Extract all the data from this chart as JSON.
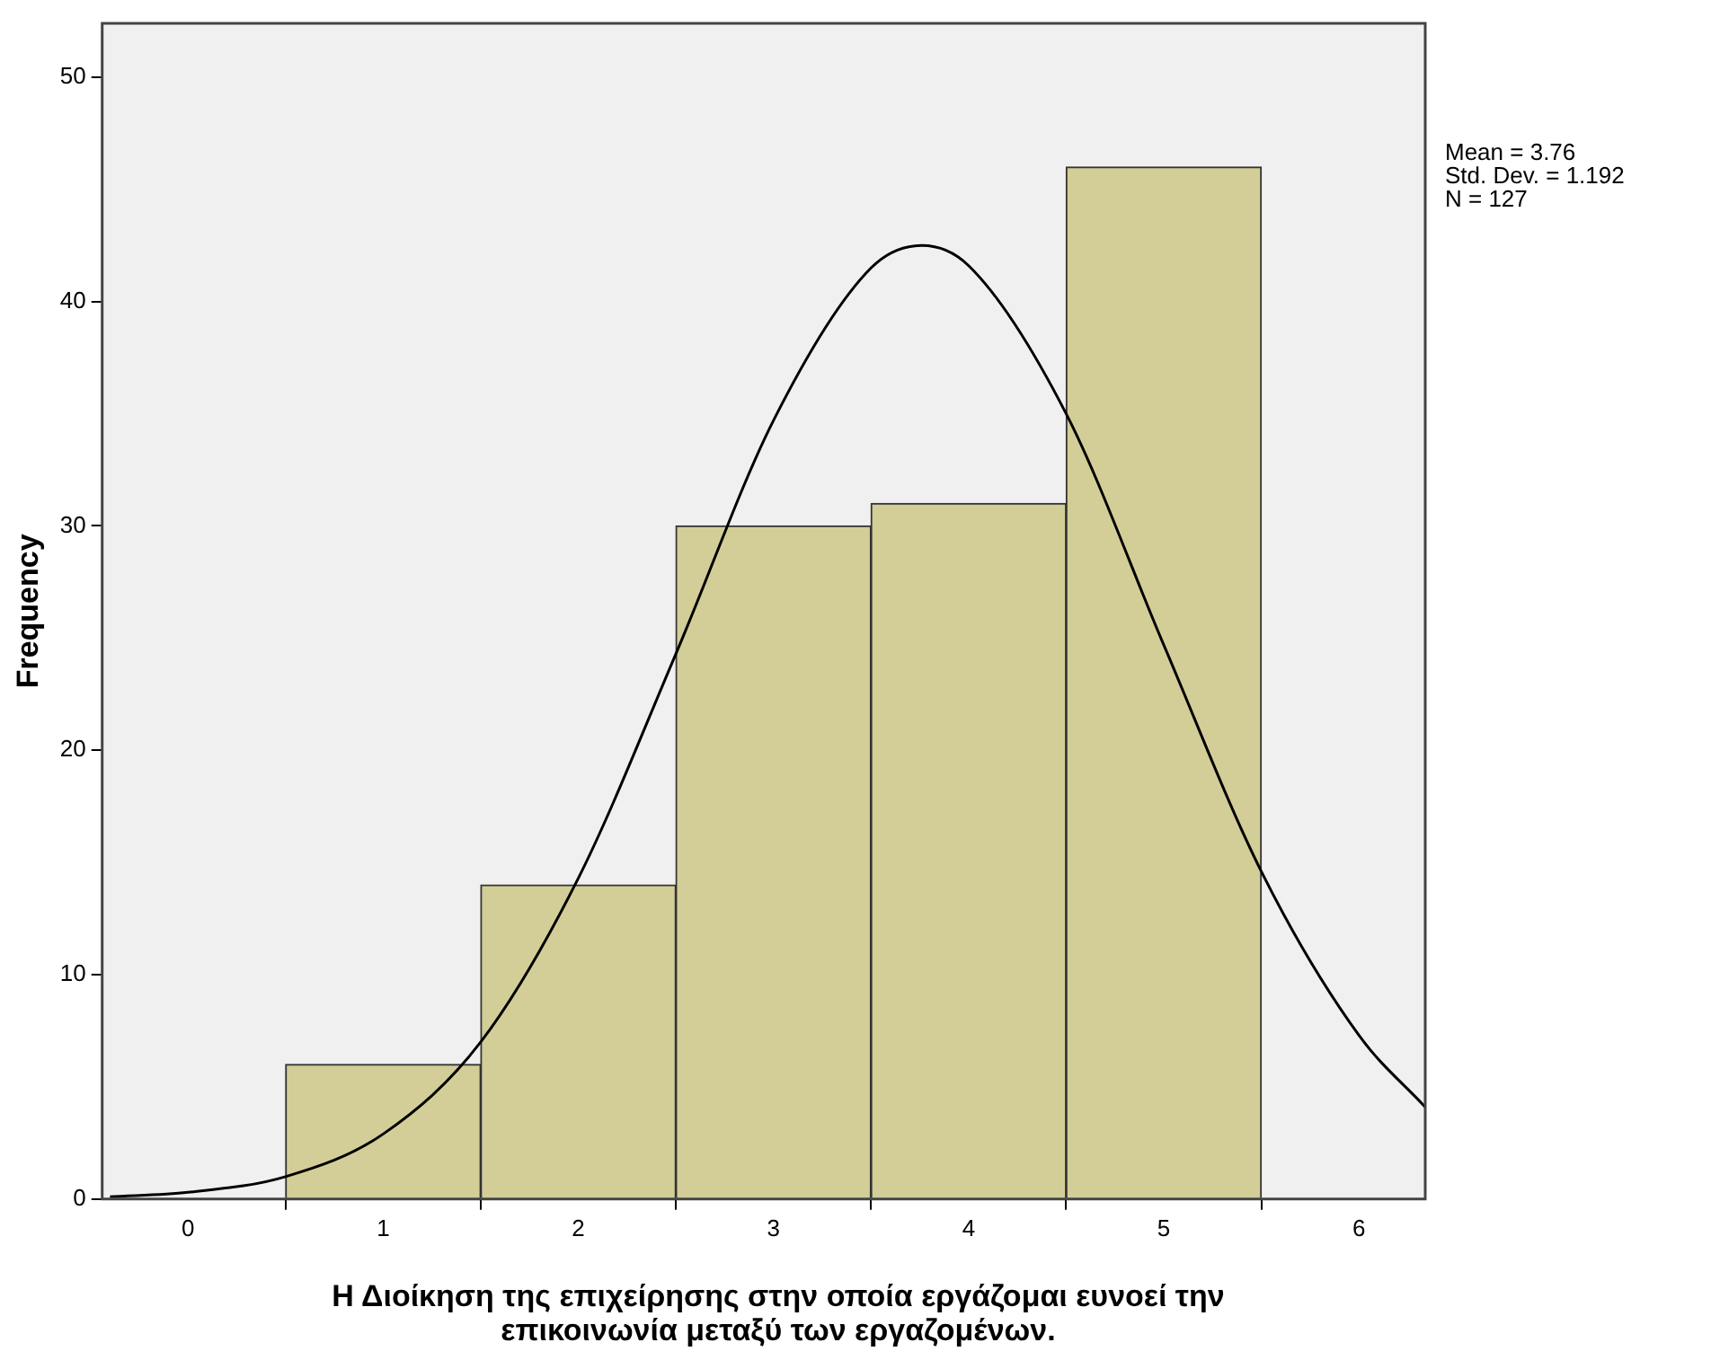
{
  "chart_data": {
    "type": "histogram",
    "xlabel": "Η Διοίκηση της επιχείρησης στην οποία εργάζομαι ευνοεί την επικοινωνία μεταξύ των εργαζομένων.",
    "ylabel": "Frequency",
    "annotations": [
      "Mean = 3.76",
      "Std. Dev. = 1.192",
      "N = 127"
    ],
    "series": [
      {
        "color": "#d3ce97",
        "bins": [
          0.5,
          1.5,
          2.5,
          3.5,
          4.5,
          5.5
        ],
        "values": [
          6,
          14,
          30,
          31,
          46
        ]
      },
      {
        "type": "line",
        "color": "#000000",
        "x": [
          -0.4,
          0,
          0.5,
          1,
          1.5,
          2,
          2.5,
          3,
          3.5,
          3.76,
          4,
          4.5,
          5,
          5.5,
          6,
          6.34
        ],
        "values": [
          0.1,
          0.3,
          1,
          2.9,
          7,
          14.3,
          24.3,
          34.7,
          41.5,
          42.5,
          41.6,
          35,
          24.7,
          14.6,
          7.3,
          4.1
        ]
      }
    ],
    "xlim": [
      -0.44,
      6.34
    ],
    "xticks": [
      0,
      1,
      2,
      3,
      4,
      5,
      6
    ],
    "ylim": [
      0,
      52.4
    ],
    "yticks": [
      0,
      10,
      20,
      30,
      40,
      50
    ],
    "grid": false,
    "legend": false,
    "marker": "none"
  }
}
